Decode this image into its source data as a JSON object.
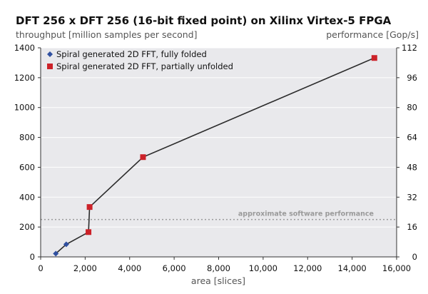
{
  "chart_data": {
    "type": "line",
    "title": "DFT 256 x DFT 256 (16-bit fixed point) on Xilinx Virtex-5 FPGA",
    "ylabel": "throughput [million samples per second]",
    "y2label": "performance [Gop/s]",
    "xlabel": "area [slices]",
    "xlim": [
      0,
      16000
    ],
    "ylim": [
      0,
      1400
    ],
    "y2lim": [
      0,
      112
    ],
    "xticks": [
      "0",
      "2,000",
      "4,000",
      "6,000",
      "8,000",
      "10,000",
      "12,000",
      "14,000",
      "16,000"
    ],
    "yticks": [
      "0",
      "200",
      "400",
      "600",
      "800",
      "1000",
      "1200",
      "1400"
    ],
    "y2ticks": [
      "0",
      "16",
      "32",
      "48",
      "64",
      "80",
      "96",
      "112"
    ],
    "grid": "horizontal",
    "legend_position": "top-left",
    "series": [
      {
        "name": "Spiral generated 2D FFT, fully folded",
        "marker": "diamond",
        "color": "#3050a0",
        "points": [
          [
            680,
            22
          ],
          [
            1150,
            84
          ]
        ]
      },
      {
        "name": "Spiral generated 2D FFT, partially unfolded",
        "marker": "square",
        "color": "#cc2229",
        "points": [
          [
            2150,
            166
          ],
          [
            2200,
            334
          ],
          [
            4600,
            668
          ],
          [
            15000,
            1332
          ]
        ]
      }
    ],
    "reference_line": {
      "label": "approximate software performance",
      "y": 250
    }
  }
}
